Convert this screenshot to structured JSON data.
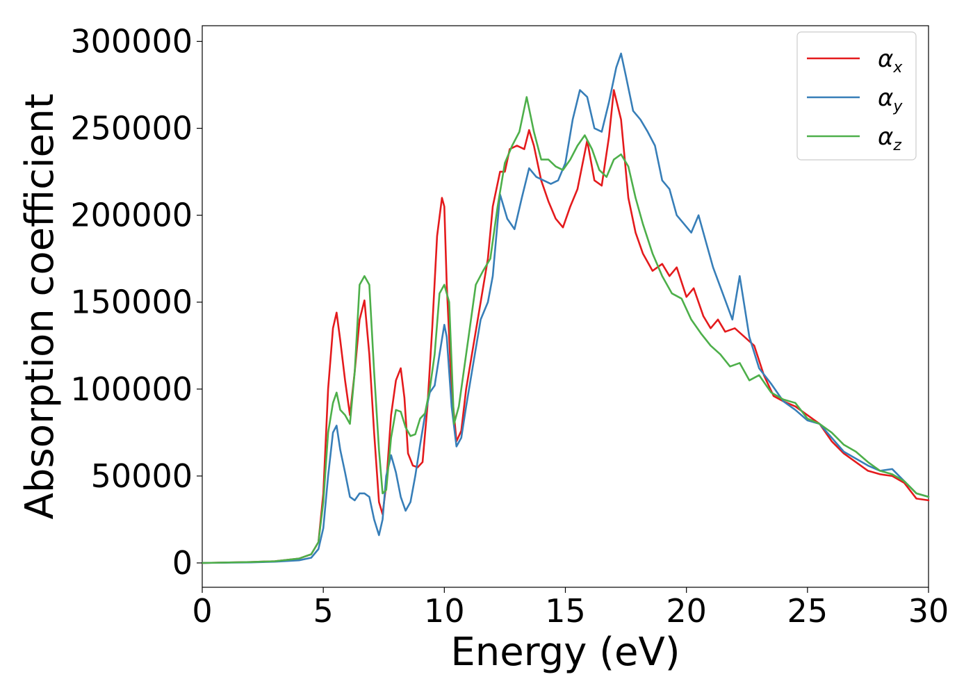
{
  "chart_data": {
    "type": "line",
    "title": "",
    "xlabel": "Energy (eV)",
    "ylabel": "Absorption coefficient",
    "xlim": [
      0,
      30
    ],
    "ylim": [
      -14000,
      309000
    ],
    "xticks": [
      "0",
      "5",
      "10",
      "15",
      "20",
      "25",
      "30"
    ],
    "yticks": [
      "0",
      "50000",
      "100000",
      "150000",
      "200000",
      "250000",
      "300000"
    ],
    "grid": false,
    "legend_position": "top-right",
    "series": [
      {
        "name": "α",
        "subscript": "x",
        "color": "#e41a1c",
        "x": [
          0,
          2,
          3,
          4,
          4.5,
          4.8,
          5.0,
          5.2,
          5.4,
          5.55,
          5.7,
          5.9,
          6.1,
          6.3,
          6.5,
          6.7,
          6.9,
          7.1,
          7.3,
          7.45,
          7.6,
          7.8,
          8.0,
          8.2,
          8.35,
          8.5,
          8.7,
          8.9,
          9.1,
          9.3,
          9.5,
          9.7,
          9.9,
          10.0,
          10.1,
          10.3,
          10.5,
          10.7,
          10.9,
          11.2,
          11.5,
          11.8,
          12.0,
          12.3,
          12.5,
          12.7,
          13.0,
          13.3,
          13.5,
          13.7,
          14.0,
          14.3,
          14.6,
          14.9,
          15.2,
          15.5,
          15.9,
          16.2,
          16.5,
          16.8,
          17.0,
          17.3,
          17.6,
          17.9,
          18.2,
          18.6,
          19.0,
          19.3,
          19.6,
          20.0,
          20.3,
          20.7,
          21.0,
          21.3,
          21.6,
          22.0,
          22.4,
          22.8,
          23.2,
          23.6,
          24.0,
          24.5,
          25.0,
          25.5,
          26.0,
          26.5,
          27.0,
          27.5,
          28.0,
          28.5,
          29.0,
          29.5,
          30.0
        ],
        "values": [
          0,
          500,
          1000,
          2500,
          5000,
          12000,
          40000,
          100000,
          135000,
          144000,
          128000,
          105000,
          85000,
          110000,
          140000,
          151000,
          120000,
          75000,
          35000,
          28000,
          45000,
          85000,
          105000,
          112000,
          95000,
          63000,
          56000,
          55000,
          58000,
          90000,
          135000,
          188000,
          210000,
          205000,
          160000,
          100000,
          70000,
          76000,
          100000,
          125000,
          150000,
          175000,
          205000,
          225000,
          225000,
          238000,
          240000,
          238000,
          249000,
          240000,
          220000,
          208000,
          198000,
          193000,
          205000,
          215000,
          243000,
          220000,
          217000,
          245000,
          272000,
          255000,
          210000,
          190000,
          178000,
          168000,
          172000,
          165000,
          170000,
          153000,
          158000,
          142000,
          135000,
          140000,
          133000,
          135000,
          130000,
          125000,
          108000,
          96000,
          93000,
          90000,
          85000,
          80000,
          70000,
          63000,
          58000,
          53000,
          51000,
          50000,
          46000,
          37000,
          36000
        ]
      },
      {
        "name": "α",
        "subscript": "y",
        "color": "#377eb8",
        "x": [
          0,
          2,
          3,
          4,
          4.5,
          4.8,
          5.0,
          5.2,
          5.4,
          5.55,
          5.7,
          5.9,
          6.1,
          6.3,
          6.5,
          6.7,
          6.9,
          7.1,
          7.3,
          7.45,
          7.6,
          7.8,
          8.0,
          8.2,
          8.4,
          8.6,
          8.8,
          9.0,
          9.2,
          9.4,
          9.6,
          9.8,
          10.0,
          10.1,
          10.3,
          10.5,
          10.7,
          10.9,
          11.2,
          11.5,
          11.8,
          12.0,
          12.3,
          12.6,
          12.9,
          13.2,
          13.5,
          13.8,
          14.1,
          14.4,
          14.7,
          15.0,
          15.3,
          15.6,
          15.9,
          16.2,
          16.5,
          16.8,
          17.1,
          17.3,
          17.5,
          17.8,
          18.1,
          18.4,
          18.7,
          19.0,
          19.3,
          19.6,
          19.9,
          20.2,
          20.5,
          20.8,
          21.1,
          21.5,
          21.9,
          22.2,
          22.6,
          23.0,
          23.5,
          24.0,
          24.5,
          25.0,
          25.5,
          26.0,
          26.5,
          27.0,
          27.5,
          28.0,
          28.5,
          29.0,
          29.5,
          30.0
        ],
        "values": [
          0,
          300,
          700,
          1500,
          3000,
          8000,
          20000,
          50000,
          75000,
          79000,
          65000,
          52000,
          38000,
          36000,
          40000,
          40000,
          38000,
          25000,
          16000,
          25000,
          50000,
          62000,
          52000,
          38000,
          30000,
          35000,
          50000,
          68000,
          85000,
          98000,
          102000,
          120000,
          137000,
          130000,
          90000,
          67000,
          72000,
          90000,
          115000,
          140000,
          150000,
          165000,
          212000,
          198000,
          192000,
          210000,
          227000,
          222000,
          220000,
          218000,
          220000,
          230000,
          255000,
          272000,
          268000,
          250000,
          248000,
          265000,
          285000,
          293000,
          280000,
          260000,
          255000,
          248000,
          240000,
          220000,
          215000,
          200000,
          195000,
          190000,
          200000,
          185000,
          170000,
          155000,
          140000,
          165000,
          130000,
          112000,
          103000,
          93000,
          88000,
          82000,
          80000,
          72000,
          64000,
          60000,
          56000,
          53000,
          54000,
          47000,
          40000,
          38000
        ]
      },
      {
        "name": "α",
        "subscript": "z",
        "color": "#4daf4a",
        "x": [
          0,
          2,
          3,
          4,
          4.5,
          4.8,
          5.0,
          5.2,
          5.4,
          5.55,
          5.7,
          5.9,
          6.1,
          6.3,
          6.5,
          6.7,
          6.9,
          7.1,
          7.3,
          7.45,
          7.6,
          7.8,
          8.0,
          8.2,
          8.4,
          8.6,
          8.8,
          9.0,
          9.2,
          9.4,
          9.6,
          9.8,
          10.0,
          10.2,
          10.4,
          10.6,
          10.8,
          11.0,
          11.3,
          11.6,
          11.9,
          12.2,
          12.5,
          12.8,
          13.1,
          13.4,
          13.7,
          14.0,
          14.3,
          14.6,
          14.9,
          15.2,
          15.5,
          15.8,
          16.1,
          16.4,
          16.7,
          17.0,
          17.3,
          17.6,
          17.9,
          18.2,
          18.6,
          19.0,
          19.4,
          19.8,
          20.2,
          20.6,
          21.0,
          21.4,
          21.8,
          22.2,
          22.6,
          23.0,
          23.5,
          24.0,
          24.5,
          25.0,
          25.5,
          26.0,
          26.5,
          27.0,
          27.5,
          28.0,
          28.5,
          29.0,
          29.5,
          30.0
        ],
        "values": [
          0,
          500,
          1000,
          2500,
          5000,
          12000,
          35000,
          75000,
          92000,
          98000,
          88000,
          85000,
          80000,
          110000,
          160000,
          165000,
          160000,
          110000,
          65000,
          40000,
          42000,
          72000,
          88000,
          87000,
          78000,
          73000,
          74000,
          83000,
          86000,
          100000,
          120000,
          155000,
          160000,
          150000,
          80000,
          90000,
          110000,
          130000,
          160000,
          168000,
          175000,
          205000,
          230000,
          240000,
          248000,
          268000,
          248000,
          232000,
          232000,
          228000,
          226000,
          232000,
          240000,
          246000,
          238000,
          226000,
          222000,
          232000,
          235000,
          228000,
          210000,
          195000,
          178000,
          165000,
          155000,
          152000,
          140000,
          132000,
          125000,
          120000,
          113000,
          115000,
          105000,
          108000,
          98000,
          94000,
          92000,
          83000,
          80000,
          75000,
          68000,
          64000,
          58000,
          53000,
          51000,
          47000,
          40000,
          38000
        ]
      }
    ]
  }
}
